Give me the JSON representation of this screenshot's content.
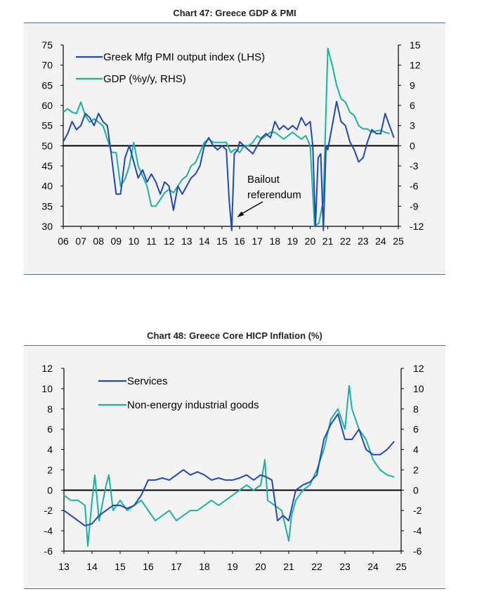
{
  "colors": {
    "series_blue": "#2147b8",
    "series_teal": "#17b3a2",
    "panel_bg": "#f3f3f3"
  },
  "chart_data": [
    {
      "type": "line",
      "title": "Chart 47: Greece GDP & PMI",
      "x_tick_labels": [
        "06",
        "07",
        "08",
        "09",
        "10",
        "11",
        "12",
        "13",
        "14",
        "15",
        "16",
        "17",
        "18",
        "19",
        "20",
        "21",
        "22",
        "23",
        "24",
        "25"
      ],
      "x_range": [
        2006,
        2025
      ],
      "ylim_left": [
        30,
        75
      ],
      "yticks_left": [
        "75",
        "70",
        "65",
        "60",
        "55",
        "50",
        "45",
        "40",
        "35",
        "30"
      ],
      "ylim_right": [
        -12,
        15
      ],
      "yticks_right": [
        "15",
        "12",
        "9",
        "6",
        "3",
        "0",
        "-3",
        "-6",
        "-9",
        "-12"
      ],
      "legend_placement": "top-left",
      "annotation": {
        "lines": [
          "Bailout",
          "referendum"
        ],
        "points_to_x": 2015.5
      },
      "series": [
        {
          "name": "Greek Mfg PMI output index (LHS)",
          "axis": "left",
          "x": [
            2006.0,
            2006.25,
            2006.5,
            2006.75,
            2007.0,
            2007.25,
            2007.5,
            2007.75,
            2008.0,
            2008.25,
            2008.5,
            2008.75,
            2009.0,
            2009.25,
            2009.5,
            2009.75,
            2010.0,
            2010.25,
            2010.5,
            2010.75,
            2011.0,
            2011.25,
            2011.5,
            2011.75,
            2012.0,
            2012.25,
            2012.5,
            2012.75,
            2013.0,
            2013.25,
            2013.5,
            2013.75,
            2014.0,
            2014.25,
            2014.5,
            2014.75,
            2015.0,
            2015.25,
            2015.4,
            2015.55,
            2015.7,
            2015.9,
            2016.0,
            2016.25,
            2016.5,
            2016.75,
            2017.0,
            2017.25,
            2017.5,
            2017.75,
            2018.0,
            2018.25,
            2018.5,
            2018.75,
            2019.0,
            2019.25,
            2019.5,
            2019.75,
            2020.0,
            2020.15,
            2020.3,
            2020.45,
            2020.6,
            2020.75,
            2020.9,
            2021.0,
            2021.25,
            2021.5,
            2021.75,
            2022.0,
            2022.25,
            2022.5,
            2022.75,
            2023.0,
            2023.25,
            2023.5,
            2023.75,
            2024.0,
            2024.25,
            2024.5,
            2024.75
          ],
          "y": [
            51,
            53,
            56,
            54,
            55,
            58,
            57,
            55,
            58,
            56,
            55,
            47,
            38,
            38,
            47,
            50,
            46,
            42,
            44,
            41,
            43,
            41,
            38,
            41,
            40,
            34,
            40,
            38,
            40,
            42,
            43,
            45,
            50,
            52,
            50,
            49,
            50,
            49,
            37,
            29,
            48,
            49,
            51,
            50,
            49,
            48,
            50,
            52,
            53,
            52,
            56,
            54,
            55,
            54,
            55,
            54,
            57,
            55,
            56,
            50,
            30,
            47,
            48,
            29,
            50,
            49,
            55,
            61,
            56,
            55,
            51,
            49,
            46,
            47,
            51,
            54,
            53,
            53,
            58,
            55,
            52
          ]
        },
        {
          "name": "GDP (%y/y, RHS)",
          "axis": "right",
          "x": [
            2006.0,
            2006.25,
            2006.5,
            2006.75,
            2007.0,
            2007.25,
            2007.5,
            2007.75,
            2008.0,
            2008.25,
            2008.5,
            2008.75,
            2009.0,
            2009.25,
            2009.5,
            2009.75,
            2010.0,
            2010.25,
            2010.5,
            2010.75,
            2011.0,
            2011.25,
            2011.5,
            2011.75,
            2012.0,
            2012.25,
            2012.5,
            2012.75,
            2013.0,
            2013.25,
            2013.5,
            2013.75,
            2014.0,
            2014.25,
            2014.5,
            2014.75,
            2015.0,
            2015.25,
            2015.5,
            2015.75,
            2016.0,
            2016.25,
            2016.5,
            2016.75,
            2017.0,
            2017.25,
            2017.5,
            2017.75,
            2018.0,
            2018.25,
            2018.5,
            2018.75,
            2019.0,
            2019.25,
            2019.5,
            2019.75,
            2020.0,
            2020.25,
            2020.5,
            2020.75,
            2021.0,
            2021.25,
            2021.5,
            2021.75,
            2022.0,
            2022.25,
            2022.5,
            2022.75,
            2023.0,
            2023.25,
            2023.5,
            2023.75,
            2024.0,
            2024.25,
            2024.5
          ],
          "y": [
            5,
            5.5,
            5,
            4.8,
            6.5,
            4.5,
            3.5,
            4,
            3.5,
            3,
            1,
            -1,
            -1,
            -6,
            -5,
            -3,
            0.5,
            -3,
            -4.5,
            -6,
            -9,
            -9,
            -8,
            -7,
            -6.5,
            -7,
            -6,
            -5,
            -4.5,
            -3,
            -2.5,
            -1,
            0.5,
            1,
            0.5,
            0.5,
            0.5,
            0.5,
            -1,
            -0.5,
            -1,
            0,
            0,
            0.5,
            1.5,
            1,
            1.5,
            2,
            2,
            1.5,
            1,
            1.5,
            2,
            1.5,
            1,
            1.5,
            0,
            -12,
            -11.5,
            -8,
            14.5,
            12,
            9,
            7,
            6.5,
            5,
            4.5,
            3,
            2.5,
            2.5,
            2,
            2.2,
            2.3,
            2,
            1.8
          ]
        }
      ]
    },
    {
      "type": "line",
      "title": "Chart 48: Greece Core HICP Inflation (%)",
      "x_tick_labels": [
        "13",
        "14",
        "15",
        "16",
        "17",
        "18",
        "19",
        "20",
        "21",
        "22",
        "23",
        "24",
        "25"
      ],
      "x_range": [
        2013,
        2025
      ],
      "ylim_left": [
        -6,
        12
      ],
      "yticks_left": [
        "12",
        "10",
        "8",
        "6",
        "4",
        "2",
        "0",
        "-2",
        "-4",
        "-6"
      ],
      "ylim_right": [
        -6,
        12
      ],
      "yticks_right": [
        "12",
        "10",
        "8",
        "6",
        "4",
        "2",
        "0",
        "-2",
        "-4",
        "-6"
      ],
      "legend_placement": "top-left",
      "series": [
        {
          "name": "Services",
          "axis": "left",
          "x": [
            2013.0,
            2013.25,
            2013.5,
            2013.75,
            2014.0,
            2014.25,
            2014.5,
            2014.75,
            2015.0,
            2015.25,
            2015.5,
            2015.75,
            2016.0,
            2016.25,
            2016.5,
            2016.75,
            2017.0,
            2017.25,
            2017.5,
            2017.75,
            2018.0,
            2018.25,
            2018.5,
            2018.75,
            2019.0,
            2019.25,
            2019.5,
            2019.75,
            2020.0,
            2020.2,
            2020.4,
            2020.6,
            2020.8,
            2021.0,
            2021.25,
            2021.5,
            2021.75,
            2022.0,
            2022.25,
            2022.5,
            2022.75,
            2023.0,
            2023.25,
            2023.5,
            2023.75,
            2024.0,
            2024.25,
            2024.5,
            2024.75
          ],
          "y": [
            -2,
            -2.5,
            -3,
            -3.5,
            -3.3,
            -2.5,
            -2,
            -1.5,
            -1.5,
            -1.8,
            -1.5,
            -0.5,
            1,
            1,
            1.2,
            1,
            1.5,
            2,
            1.5,
            1.8,
            1.5,
            1,
            1.2,
            1,
            1,
            1.2,
            1.5,
            1,
            1.5,
            1.3,
            1,
            -3,
            -2.5,
            -3,
            0,
            0.5,
            0.8,
            1.5,
            5,
            6.5,
            7.5,
            5,
            5,
            6,
            4,
            3.5,
            3.5,
            4,
            4.8
          ]
        },
        {
          "name": "Non-energy industrial goods",
          "axis": "left",
          "x": [
            2013.0,
            2013.25,
            2013.5,
            2013.75,
            2013.85,
            2014.0,
            2014.1,
            2014.25,
            2014.5,
            2014.6,
            2014.75,
            2015.0,
            2015.25,
            2015.5,
            2015.75,
            2016.0,
            2016.25,
            2016.5,
            2016.75,
            2017.0,
            2017.25,
            2017.5,
            2017.75,
            2018.0,
            2018.25,
            2018.5,
            2018.75,
            2019.0,
            2019.25,
            2019.5,
            2019.75,
            2020.0,
            2020.15,
            2020.25,
            2020.5,
            2020.75,
            2021.0,
            2021.1,
            2021.25,
            2021.5,
            2021.75,
            2022.0,
            2022.25,
            2022.5,
            2022.75,
            2023.0,
            2023.15,
            2023.25,
            2023.5,
            2023.75,
            2024.0,
            2024.25,
            2024.5,
            2024.75
          ],
          "y": [
            -0.5,
            -1,
            -1,
            -1.5,
            -5.5,
            -1,
            1.5,
            -3,
            0.5,
            1.5,
            -2,
            -1,
            -2,
            -1.5,
            -1,
            -2,
            -3,
            -2.5,
            -2,
            -3,
            -2.5,
            -2,
            -2,
            -1.5,
            -1,
            -1.5,
            -1,
            -0.5,
            0,
            0.5,
            0,
            0.5,
            3,
            -1,
            -1.5,
            -2,
            -5,
            -2.5,
            -1,
            0,
            0.5,
            2,
            4,
            7,
            8,
            6,
            10.3,
            8,
            6,
            5,
            3,
            2,
            1.5,
            1.3
          ]
        }
      ]
    }
  ]
}
